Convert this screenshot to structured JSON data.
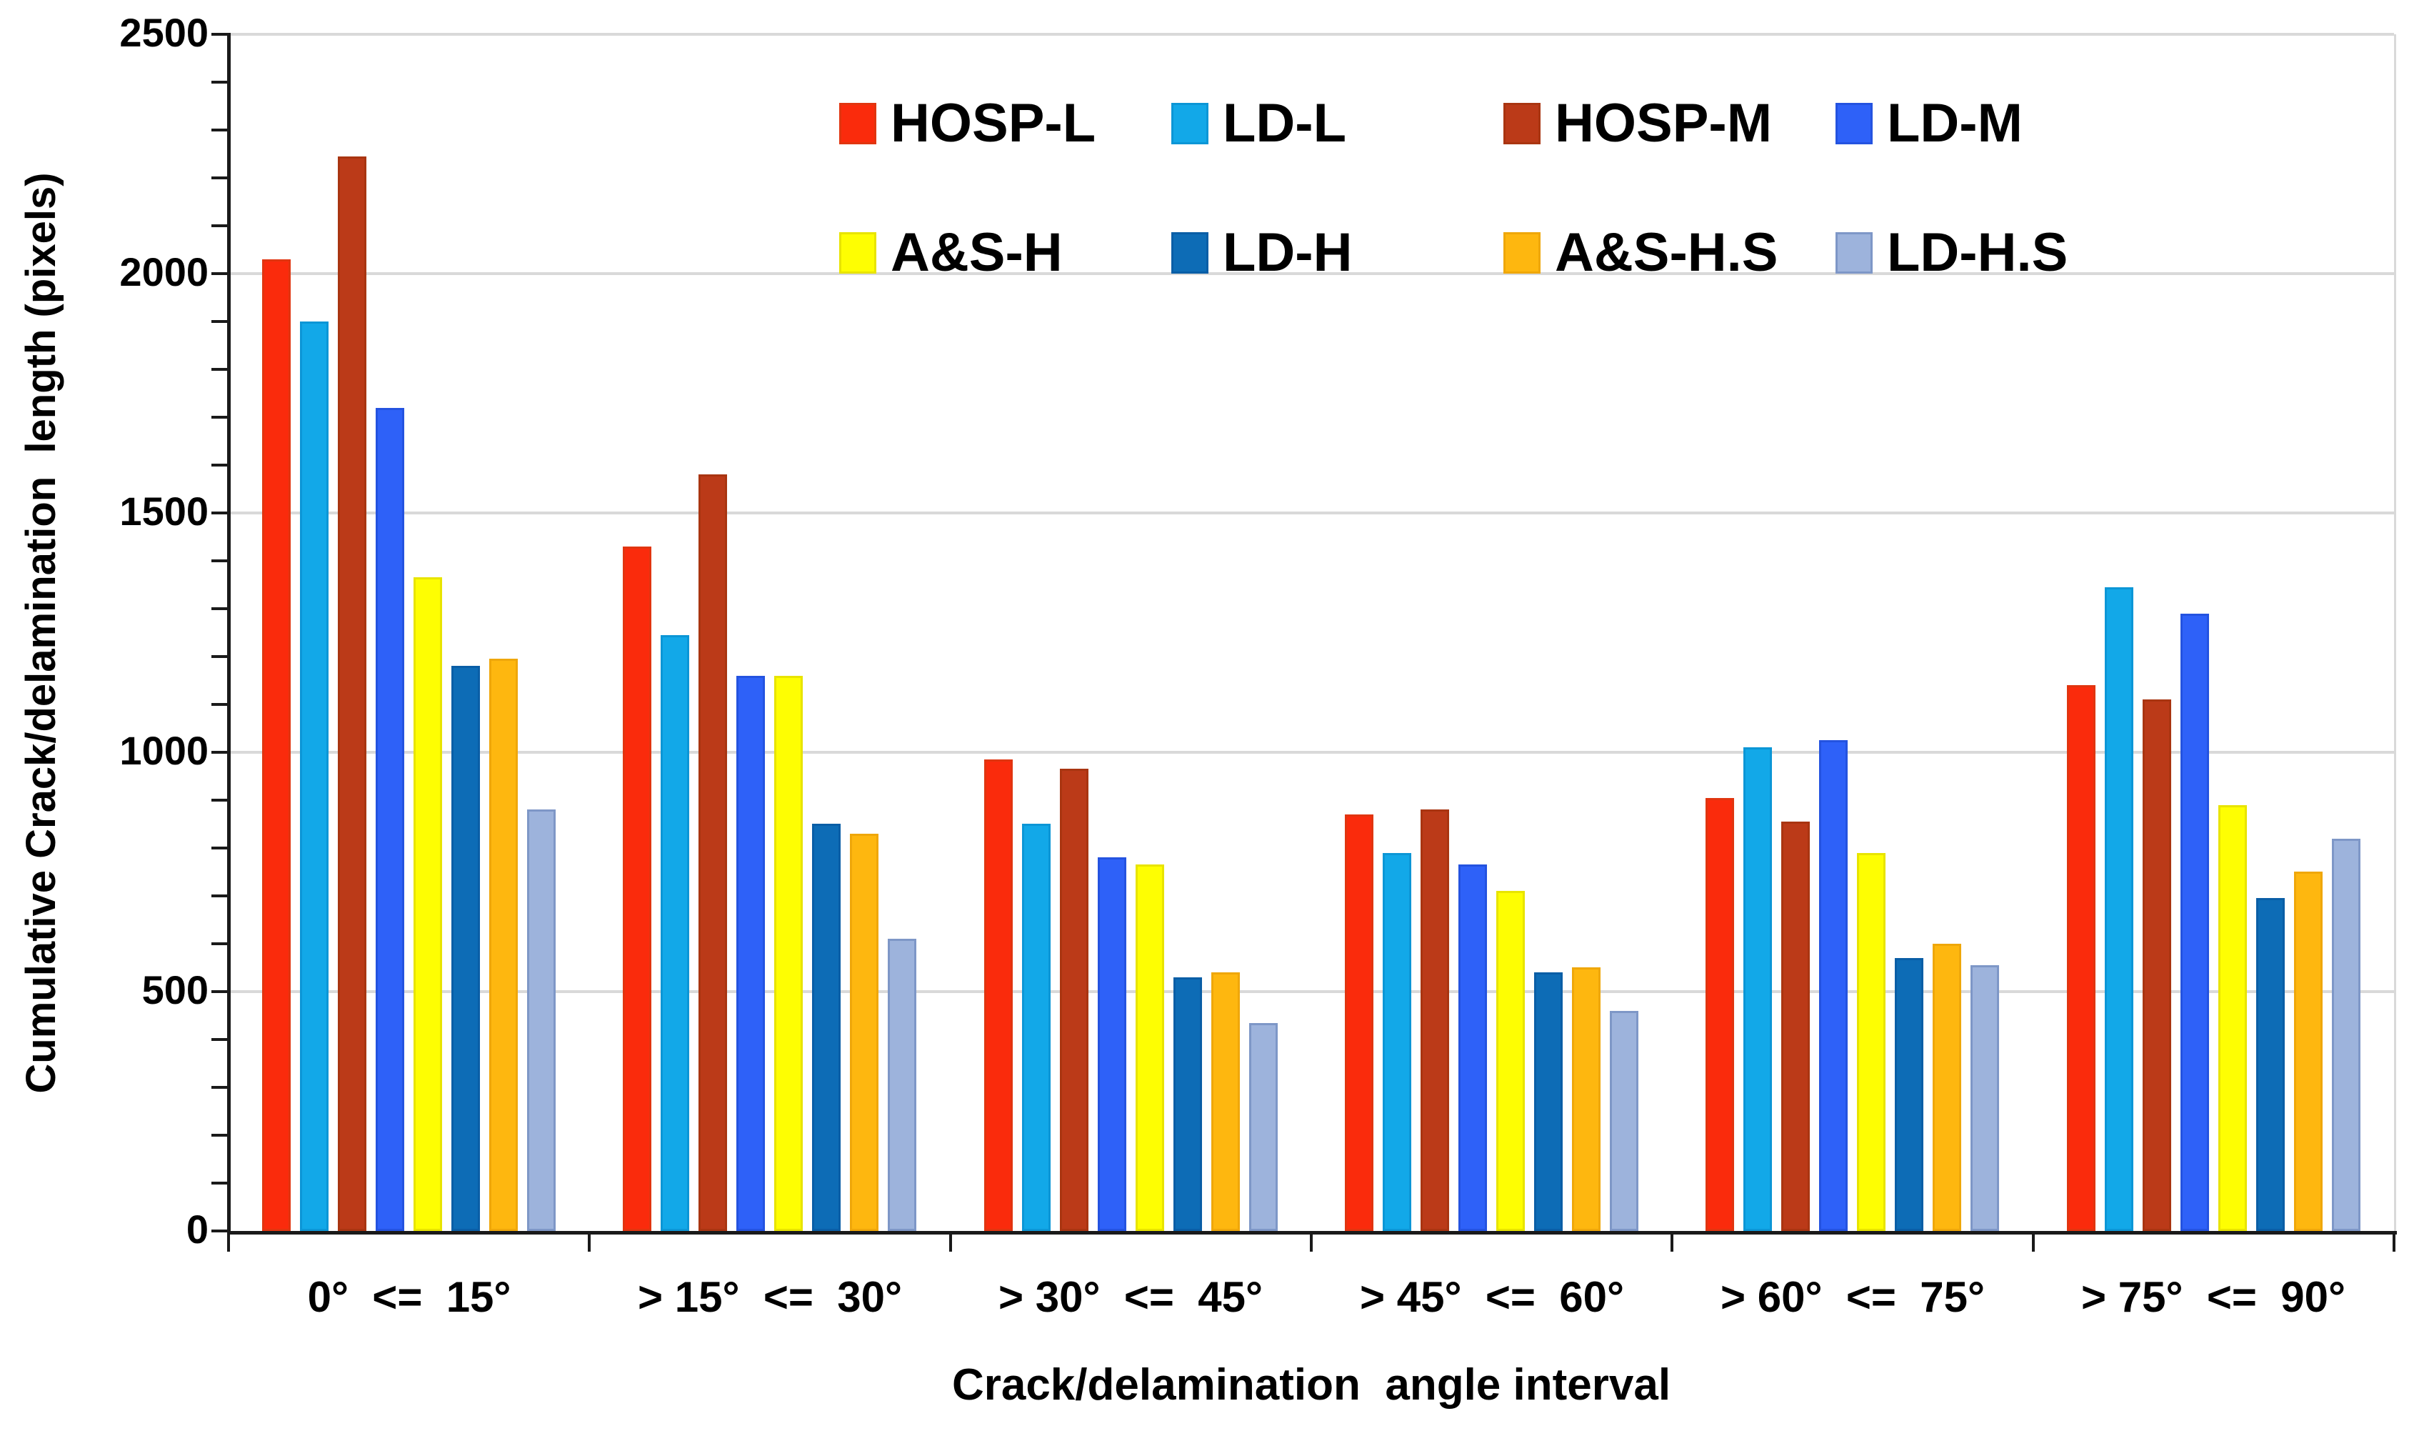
{
  "chart_data": {
    "type": "bar",
    "title": "",
    "xlabel": "Crack/delamination  angle interval",
    "ylabel": "Cumulative Crack/delamination  length (pixels)",
    "ylim": [
      0,
      2500
    ],
    "yticks": [
      0,
      500,
      1000,
      1500,
      2000,
      2500
    ],
    "minor_tick_step": 100,
    "grid": true,
    "legend_position": "top-center",
    "legend_columns": 4,
    "categories": [
      "0°  <=  15°",
      "> 15°  <=  30°",
      "> 30°  <=  45°",
      "> 45°  <=  60°",
      "> 60°  <=  75°",
      "> 75°  <=  90°"
    ],
    "series": [
      {
        "name": "HOSP-L",
        "color": "#FA2B0C",
        "border": "#E13510",
        "values": [
          2030,
          1430,
          985,
          870,
          905,
          1140
        ]
      },
      {
        "name": "LD-L",
        "color": "#12A8E8",
        "border": "#0C96D6",
        "values": [
          1900,
          1245,
          850,
          790,
          1010,
          1345
        ]
      },
      {
        "name": "HOSP-M",
        "color": "#BB3A18",
        "border": "#A93511",
        "values": [
          2245,
          1580,
          965,
          880,
          855,
          1110
        ]
      },
      {
        "name": "LD-M",
        "color": "#2E61F8",
        "border": "#2453E0",
        "values": [
          1720,
          1160,
          780,
          765,
          1025,
          1290
        ]
      },
      {
        "name": "A&S-H",
        "color": "#FEFE02",
        "border": "#E8E400",
        "values": [
          1365,
          1160,
          765,
          710,
          790,
          890
        ]
      },
      {
        "name": "LD-H",
        "color": "#0D6CB6",
        "border": "#0A5EA6",
        "values": [
          1180,
          850,
          530,
          540,
          570,
          695
        ]
      },
      {
        "name": "A&S-H.S",
        "color": "#FEB70F",
        "border": "#EFA70A",
        "values": [
          1195,
          830,
          540,
          550,
          600,
          750
        ]
      },
      {
        "name": "LD-H.S",
        "color": "#9DB3DC",
        "border": "#7E97C7",
        "values": [
          880,
          610,
          435,
          460,
          555,
          820
        ]
      }
    ],
    "colors": {
      "gridline": "#D9D9D9",
      "axis": "#1a1a1a",
      "text": "#000000",
      "background": "#ffffff"
    }
  }
}
